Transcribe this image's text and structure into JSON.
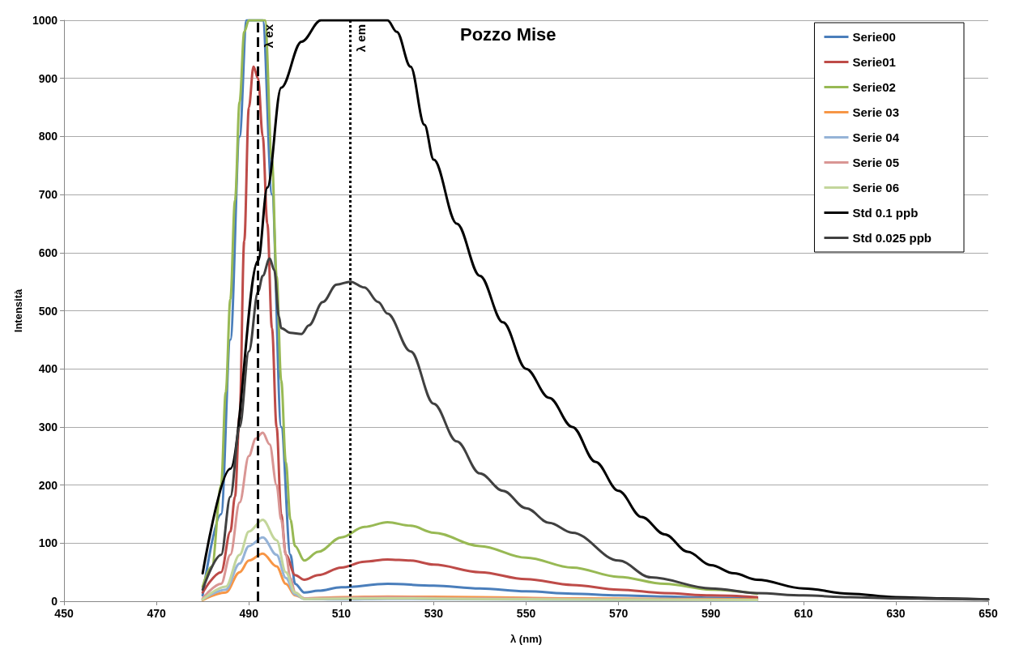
{
  "chart_data": {
    "type": "line",
    "title": "Pozzo Mise",
    "xlabel": "λ (nm)",
    "ylabel": "Intensità",
    "xlim": [
      450,
      650
    ],
    "xticks": [
      450,
      470,
      490,
      510,
      530,
      550,
      570,
      590,
      610,
      630,
      650
    ],
    "ylim": [
      0,
      1000
    ],
    "yticks": [
      0,
      100,
      200,
      300,
      400,
      500,
      600,
      700,
      800,
      900,
      1000
    ],
    "grid": "y",
    "legend": "top right",
    "marker": "none",
    "ref_lines": [
      {
        "axis": "x",
        "value": 492,
        "label": "λ ex",
        "color": "#000000",
        "line_style": "dashed"
      },
      {
        "axis": "x",
        "value": 512,
        "label": "λ em",
        "color": "#000000",
        "line_style": "dotted"
      }
    ],
    "series": [
      {
        "name": "Serie00",
        "color": "#4a7ebb",
        "x": [
          480,
          484,
          486,
          488,
          489.5,
          491,
          493,
          495,
          497,
          499,
          500,
          502,
          505,
          510,
          520,
          530,
          540,
          550,
          560,
          570,
          580,
          590,
          600
        ],
        "values": [
          10,
          150,
          450,
          800,
          1000,
          1000,
          1000,
          700,
          300,
          80,
          30,
          15,
          18,
          24,
          30,
          27,
          22,
          17,
          13,
          10,
          8,
          6,
          5
        ]
      },
      {
        "name": "Serie01",
        "color": "#be4b48",
        "x": [
          480,
          484,
          486,
          487,
          488,
          489,
          490,
          491,
          492,
          493,
          494,
          495,
          496,
          497,
          498,
          500,
          502,
          505,
          510,
          515,
          520,
          525,
          530,
          540,
          550,
          560,
          570,
          580,
          590,
          600
        ],
        "values": [
          15,
          50,
          120,
          180,
          320,
          620,
          850,
          920,
          900,
          800,
          650,
          470,
          300,
          150,
          80,
          45,
          37,
          45,
          58,
          68,
          72,
          70,
          63,
          50,
          38,
          28,
          20,
          14,
          10,
          7
        ]
      },
      {
        "name": "Serie02",
        "color": "#98b954",
        "x": [
          480,
          482,
          484,
          485,
          486,
          487,
          488,
          489,
          490,
          492,
          493.5,
          495,
          496,
          497,
          498,
          499,
          500,
          502,
          505,
          510,
          515,
          520,
          525,
          530,
          540,
          550,
          560,
          570,
          580,
          590,
          600
        ],
        "values": [
          25,
          60,
          200,
          360,
          520,
          690,
          860,
          980,
          1000,
          1000,
          1000,
          760,
          560,
          380,
          240,
          140,
          95,
          70,
          85,
          110,
          128,
          136,
          130,
          118,
          95,
          75,
          58,
          42,
          30,
          20,
          13
        ]
      },
      {
        "name": "Serie 03",
        "color": "#f79646",
        "x": [
          480,
          485,
          488,
          490,
          493,
          496,
          498,
          500,
          502,
          510,
          520,
          540,
          560,
          580,
          600
        ],
        "values": [
          2,
          15,
          50,
          70,
          82,
          60,
          30,
          10,
          5,
          7,
          8,
          7,
          5,
          4,
          3
        ]
      },
      {
        "name": "Serie 04",
        "color": "#95b3d7",
        "x": [
          480,
          485,
          488,
          490,
          493,
          496,
          498,
          500,
          502,
          510,
          520,
          540,
          570,
          600
        ],
        "values": [
          3,
          20,
          65,
          95,
          110,
          80,
          40,
          12,
          4,
          3,
          4,
          3,
          2,
          1
        ]
      },
      {
        "name": "Serie 05",
        "color": "#d99694",
        "x": [
          480,
          484,
          486,
          488,
          490,
          491.5,
          493,
          494.5,
          496,
          497,
          498,
          499,
          500,
          502,
          510,
          520,
          540,
          560,
          580,
          600
        ],
        "values": [
          5,
          30,
          80,
          170,
          250,
          280,
          290,
          270,
          200,
          140,
          80,
          40,
          15,
          5,
          6,
          7,
          5,
          4,
          3,
          2
        ]
      },
      {
        "name": "Serie 06",
        "color": "#c3d69b",
        "x": [
          480,
          485,
          488,
          490,
          493,
          496,
          498,
          500,
          502,
          520,
          560,
          600
        ],
        "values": [
          3,
          25,
          80,
          120,
          140,
          105,
          50,
          15,
          4,
          5,
          3,
          2
        ]
      },
      {
        "name": "Std 0.1 ppb",
        "color": "#000000",
        "x": [
          480,
          486,
          492,
          494,
          497,
          501.4,
          505.6,
          512,
          520,
          522,
          525,
          528,
          530,
          535,
          540,
          545,
          550,
          555,
          560,
          565,
          570,
          575,
          580,
          585,
          590,
          595,
          600,
          610,
          620,
          630,
          640,
          650
        ],
        "values": [
          48,
          228,
          586,
          712,
          884,
          963,
          1000,
          1000,
          1000,
          980,
          920,
          820,
          760,
          650,
          560,
          480,
          400,
          350,
          300,
          240,
          190,
          145,
          115,
          85,
          62,
          48,
          37,
          22,
          13,
          7,
          5,
          3
        ]
      },
      {
        "name": "Std 0.025 ppb",
        "color": "#404040",
        "x": [
          480,
          484,
          486,
          488,
          490,
          492,
          493,
          494.5,
          495.5,
          496.5,
          497,
          499,
          501.4,
          503,
          506,
          509,
          512,
          515,
          518,
          520,
          525,
          530,
          535,
          540,
          545,
          550,
          555,
          560,
          570,
          577,
          590,
          600,
          610,
          620,
          630,
          640,
          650
        ],
        "values": [
          20,
          80,
          180,
          300,
          430,
          533,
          560,
          590,
          570,
          490,
          470,
          462,
          460,
          475,
          515,
          545,
          550,
          540,
          515,
          495,
          430,
          340,
          275,
          220,
          190,
          160,
          135,
          118,
          70,
          41,
          22,
          14,
          10,
          7,
          5,
          4,
          3
        ]
      }
    ]
  }
}
